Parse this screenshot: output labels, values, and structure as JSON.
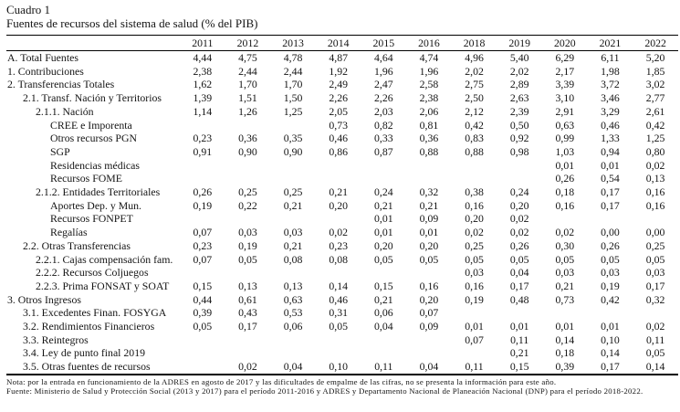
{
  "title": {
    "line1": "Cuadro 1",
    "line2": "Fuentes de recursos del sistema de salud (% del PIB)"
  },
  "table": {
    "years": [
      "2011",
      "2012",
      "2013",
      "2014",
      "2015",
      "2016",
      "2018",
      "2019",
      "2020",
      "2021",
      "2022"
    ],
    "rows": [
      {
        "label": "A. Total Fuentes",
        "indent": 0,
        "values": [
          "4,44",
          "4,75",
          "4,78",
          "4,87",
          "4,64",
          "4,74",
          "4,96",
          "5,40",
          "6,29",
          "6,11",
          "5,20"
        ]
      },
      {
        "label": "1. Contribuciones",
        "indent": 0,
        "values": [
          "2,38",
          "2,44",
          "2,44",
          "1,92",
          "1,96",
          "1,96",
          "2,02",
          "2,02",
          "2,17",
          "1,98",
          "1,85"
        ]
      },
      {
        "label": "2. Transferencias Totales",
        "indent": 0,
        "values": [
          "1,62",
          "1,70",
          "1,70",
          "2,49",
          "2,47",
          "2,58",
          "2,75",
          "2,89",
          "3,39",
          "3,72",
          "3,02"
        ]
      },
      {
        "label": "2.1. Transf. Nación y Territorios",
        "indent": 1,
        "values": [
          "1,39",
          "1,51",
          "1,50",
          "2,26",
          "2,26",
          "2,38",
          "2,50",
          "2,63",
          "3,10",
          "3,46",
          "2,77"
        ]
      },
      {
        "label": "2.1.1. Nación",
        "indent": 2,
        "values": [
          "1,14",
          "1,26",
          "1,25",
          "2,05",
          "2,03",
          "2,06",
          "2,12",
          "2,39",
          "2,91",
          "3,29",
          "2,61"
        ]
      },
      {
        "label": "CREE e Imporenta",
        "indent": 3,
        "values": [
          "",
          "",
          "",
          "0,73",
          "0,82",
          "0,81",
          "0,42",
          "0,50",
          "0,63",
          "0,46",
          "0,42"
        ]
      },
      {
        "label": "Otros recursos PGN",
        "indent": 3,
        "values": [
          "0,23",
          "0,36",
          "0,35",
          "0,46",
          "0,33",
          "0,36",
          "0,83",
          "0,92",
          "0,99",
          "1,33",
          "1,25"
        ]
      },
      {
        "label": "SGP",
        "indent": 3,
        "values": [
          "0,91",
          "0,90",
          "0,90",
          "0,86",
          "0,87",
          "0,88",
          "0,88",
          "0,98",
          "1,03",
          "0,94",
          "0,80"
        ]
      },
      {
        "label": "Residencias médicas",
        "indent": 3,
        "values": [
          "",
          "",
          "",
          "",
          "",
          "",
          "",
          "",
          "0,01",
          "0,01",
          "0,02"
        ]
      },
      {
        "label": "Recursos FOME",
        "indent": 3,
        "values": [
          "",
          "",
          "",
          "",
          "",
          "",
          "",
          "",
          "0,26",
          "0,54",
          "0,13"
        ]
      },
      {
        "label": "2.1.2. Entidades Territoriales",
        "indent": 2,
        "values": [
          "0,26",
          "0,25",
          "0,25",
          "0,21",
          "0,24",
          "0,32",
          "0,38",
          "0,24",
          "0,18",
          "0,17",
          "0,16"
        ]
      },
      {
        "label": "Aportes Dep. y Mun.",
        "indent": 3,
        "values": [
          "0,19",
          "0,22",
          "0,21",
          "0,20",
          "0,21",
          "0,21",
          "0,16",
          "0,20",
          "0,16",
          "0,17",
          "0,16"
        ]
      },
      {
        "label": "Recursos FONPET",
        "indent": 3,
        "values": [
          "",
          "",
          "",
          "",
          "0,01",
          "0,09",
          "0,20",
          "0,02",
          "",
          "",
          ""
        ]
      },
      {
        "label": "Regalías",
        "indent": 3,
        "values": [
          "0,07",
          "0,03",
          "0,03",
          "0,02",
          "0,01",
          "0,01",
          "0,02",
          "0,02",
          "0,02",
          "0,00",
          "0,00"
        ]
      },
      {
        "label": "2.2. Otras Transferencias",
        "indent": 1,
        "values": [
          "0,23",
          "0,19",
          "0,21",
          "0,23",
          "0,20",
          "0,20",
          "0,25",
          "0,26",
          "0,30",
          "0,26",
          "0,25"
        ]
      },
      {
        "label": "2.2.1. Cajas compensación fam.",
        "indent": 2,
        "values": [
          "0,07",
          "0,05",
          "0,08",
          "0,08",
          "0,05",
          "0,05",
          "0,05",
          "0,05",
          "0,05",
          "0,05",
          "0,05"
        ]
      },
      {
        "label": "2.2.2. Recursos Coljuegos",
        "indent": 2,
        "values": [
          "",
          "",
          "",
          "",
          "",
          "",
          "0,03",
          "0,04",
          "0,03",
          "0,03",
          "0,03"
        ]
      },
      {
        "label": "2.2.3. Prima FONSAT y SOAT",
        "indent": 2,
        "values": [
          "0,15",
          "0,13",
          "0,13",
          "0,14",
          "0,15",
          "0,16",
          "0,16",
          "0,17",
          "0,21",
          "0,19",
          "0,17"
        ]
      },
      {
        "label": "3. Otros Ingresos",
        "indent": 0,
        "values": [
          "0,44",
          "0,61",
          "0,63",
          "0,46",
          "0,21",
          "0,20",
          "0,19",
          "0,48",
          "0,73",
          "0,42",
          "0,32"
        ]
      },
      {
        "label": "3.1. Excedentes Finan. FOSYGA",
        "indent": 1,
        "values": [
          "0,39",
          "0,43",
          "0,53",
          "0,31",
          "0,06",
          "0,07",
          "",
          "",
          "",
          "",
          ""
        ]
      },
      {
        "label": "3.2. Rendimientos Financieros",
        "indent": 1,
        "values": [
          "0,05",
          "0,17",
          "0,06",
          "0,05",
          "0,04",
          "0,09",
          "0,01",
          "0,01",
          "0,01",
          "0,01",
          "0,02"
        ]
      },
      {
        "label": "3.3. Reintegros",
        "indent": 1,
        "values": [
          "",
          "",
          "",
          "",
          "",
          "",
          "0,07",
          "0,11",
          "0,14",
          "0,10",
          "0,11"
        ]
      },
      {
        "label": "3.4. Ley de punto final 2019",
        "indent": 1,
        "values": [
          "",
          "",
          "",
          "",
          "",
          "",
          "",
          "0,21",
          "0,18",
          "0,14",
          "0,05"
        ]
      },
      {
        "label": "3.5. Otras fuentes de recursos",
        "indent": 1,
        "values": [
          "",
          "0,02",
          "0,04",
          "0,10",
          "0,11",
          "0,04",
          "0,11",
          "0,15",
          "0,39",
          "0,17",
          "0,14"
        ]
      }
    ]
  },
  "notes": {
    "nota": "Nota: por la entrada en funcionamiento de la ADRES en agosto de 2017 y las dificultades de empalme de las cifras, no se presenta la información para este año.",
    "fuente": "Fuente: Ministerio de Salud y Protección Social (2013 y 2017) para el período 2011-2016 y ADRES y Departamento Nacional de Planeación Nacional (DNP) para el período 2018-2022."
  }
}
